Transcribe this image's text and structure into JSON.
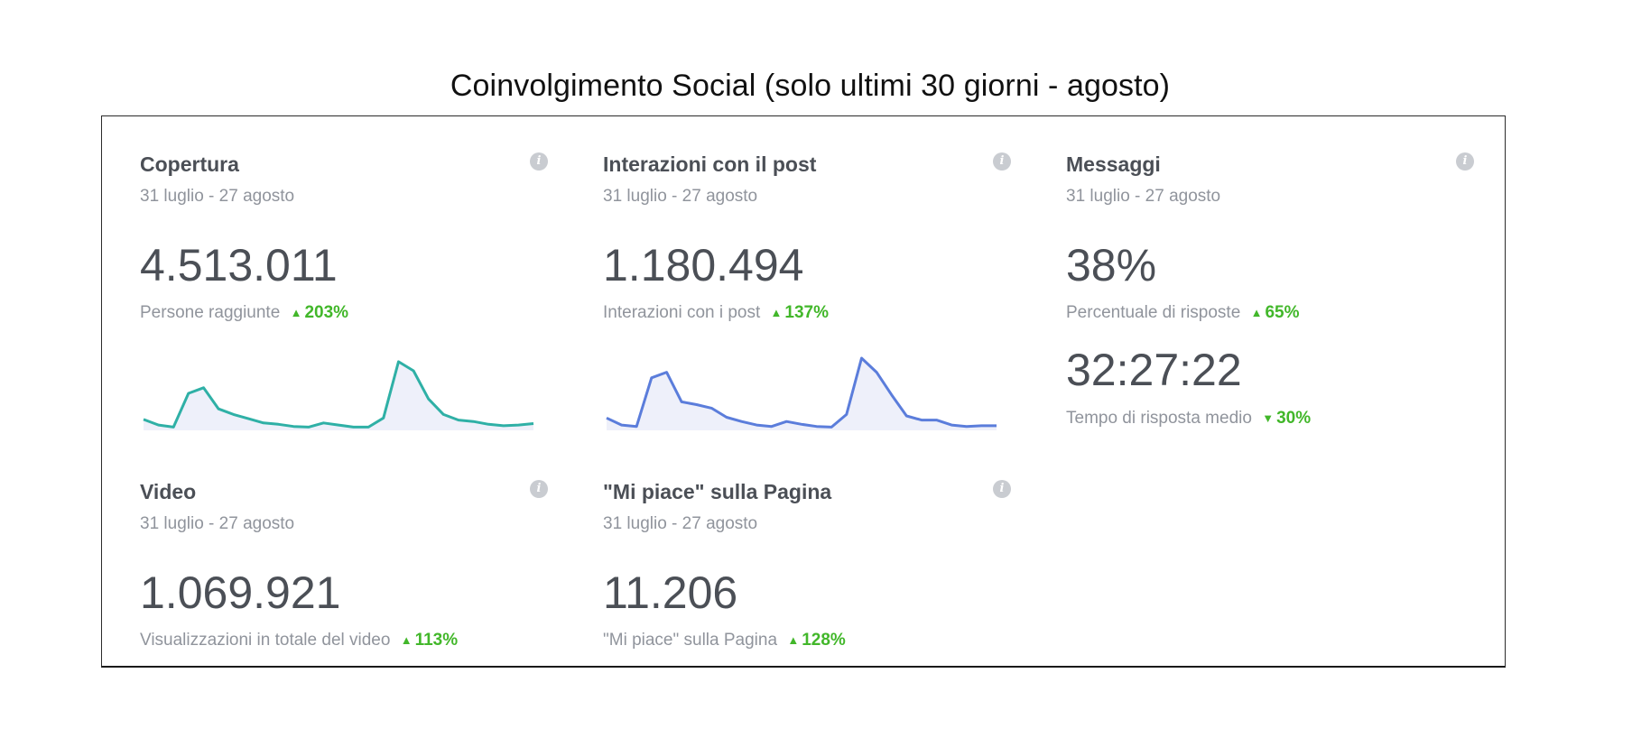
{
  "title": "Coinvolgimento Social (solo ultimi 30 giorni - agosto)",
  "info_label": "i",
  "colors": {
    "positive": "#42b72a",
    "teal_line": "#2fb0a6",
    "blue_line": "#5b7ddb",
    "fill": "#eef0fa"
  },
  "cards": {
    "copertura": {
      "title": "Copertura",
      "date": "31 luglio - 27 agosto",
      "value": "4.513.011",
      "label": "Persone raggiunte",
      "delta": "203%",
      "delta_dir": "up",
      "trend": [
        0.13,
        0.05,
        0.02,
        0.5,
        0.58,
        0.28,
        0.2,
        0.14,
        0.08,
        0.06,
        0.03,
        0.02,
        0.08,
        0.05,
        0.02,
        0.02,
        0.15,
        0.95,
        0.82,
        0.42,
        0.2,
        0.12,
        0.1,
        0.06,
        0.04,
        0.05,
        0.07
      ]
    },
    "interazioni": {
      "title": "Interazioni con il post",
      "date": "31 luglio - 27 agosto",
      "value": "1.180.494",
      "label": "Interazioni con i post",
      "delta": "137%",
      "delta_dir": "up",
      "trend": [
        0.15,
        0.05,
        0.03,
        0.72,
        0.8,
        0.38,
        0.34,
        0.29,
        0.16,
        0.1,
        0.05,
        0.03,
        0.1,
        0.06,
        0.03,
        0.02,
        0.2,
        1.0,
        0.8,
        0.48,
        0.18,
        0.12,
        0.12,
        0.05,
        0.03,
        0.04,
        0.04
      ]
    },
    "messaggi": {
      "title": "Messaggi",
      "date": "31 luglio - 27 agosto",
      "value": "38%",
      "label": "Percentuale di risposte",
      "delta": "65%",
      "delta_dir": "up",
      "value2": "32:27:22",
      "label2": "Tempo di risposta medio",
      "delta2": "30%",
      "delta2_dir": "down"
    },
    "video": {
      "title": "Video",
      "date": "31 luglio - 27 agosto",
      "value": "1.069.921",
      "label": "Visualizzazioni in totale del video",
      "delta": "113%",
      "delta_dir": "up"
    },
    "mipiace": {
      "title": "\"Mi piace\" sulla Pagina",
      "date": "31 luglio - 27 agosto",
      "value": "11.206",
      "label": "\"Mi piace\" sulla Pagina",
      "delta": "128%",
      "delta_dir": "up"
    }
  }
}
